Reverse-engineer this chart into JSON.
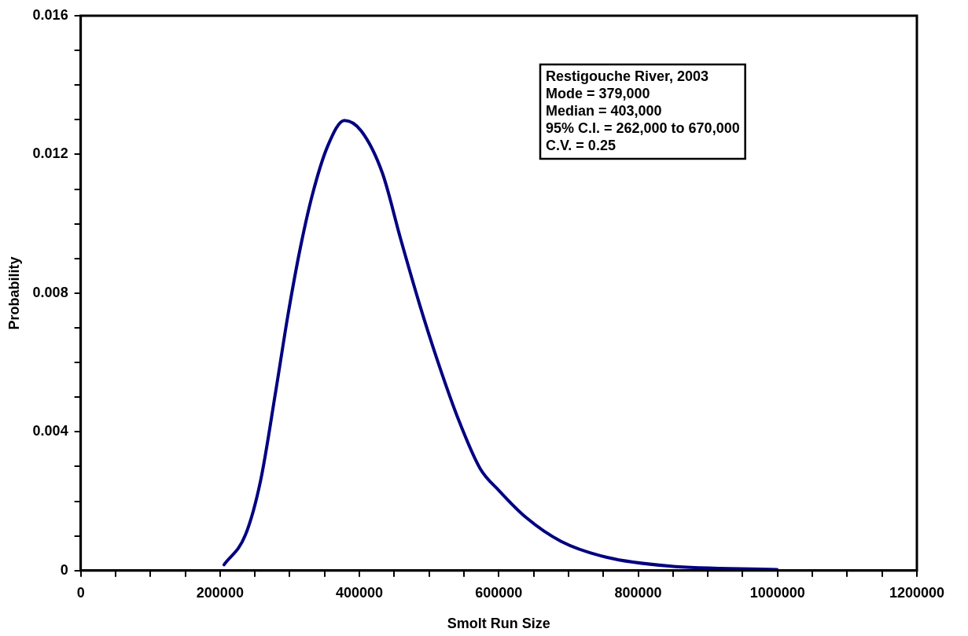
{
  "chart_data": {
    "type": "line",
    "xlabel": "Smolt Run Size",
    "ylabel": "Probability",
    "annotations": [
      "Restigouche River, 2003",
      "Mode = 379,000",
      "Median = 403,000",
      "95% C.I. = 262,000 to 670,000",
      "C.V. = 0.25"
    ],
    "series": [
      {
        "color": "#000080",
        "x": [
          205700,
          236400,
          258200,
          280100,
          297500,
          315000,
          332600,
          354400,
          378500,
          402500,
          433000,
          459300,
          485500,
          511800,
          542400,
          573000,
          600600,
          639200,
          689600,
          755400,
          844500,
          999300
        ],
        "values": [
          0.00017,
          0.00103,
          0.0026,
          0.0052,
          0.00738,
          0.00929,
          0.01085,
          0.01224,
          0.01298,
          0.01268,
          0.01146,
          0.00955,
          0.00773,
          0.00607,
          0.00434,
          0.00295,
          0.0023,
          0.00153,
          0.00084,
          0.00038,
          0.00013,
          3e-05
        ]
      }
    ],
    "xlim": [
      0,
      1200000
    ],
    "xticks": [
      0,
      {
        "value": 50000,
        "label": null
      },
      {
        "value": 100000,
        "label": null
      },
      {
        "value": 150000,
        "label": null
      },
      200000,
      {
        "value": 250000,
        "label": null
      },
      {
        "value": 300000,
        "label": null
      },
      {
        "value": 350000,
        "label": null
      },
      400000,
      {
        "value": 450000,
        "label": null
      },
      {
        "value": 500000,
        "label": null
      },
      {
        "value": 550000,
        "label": null
      },
      600000,
      {
        "value": 650000,
        "label": null
      },
      {
        "value": 700000,
        "label": null
      },
      {
        "value": 750000,
        "label": null
      },
      800000,
      {
        "value": 850000,
        "label": null
      },
      {
        "value": 900000,
        "label": null
      },
      {
        "value": 950000,
        "label": null
      },
      1000000,
      {
        "value": 1050000,
        "label": null
      },
      {
        "value": 1100000,
        "label": null
      },
      {
        "value": 1150000,
        "label": null
      },
      1200000
    ],
    "ylim": [
      0,
      0.016
    ],
    "yticks": [
      0,
      {
        "value": 0.001,
        "label": null
      },
      {
        "value": 0.002,
        "label": null
      },
      {
        "value": 0.003,
        "label": null
      },
      0.004,
      {
        "value": 0.005,
        "label": null
      },
      {
        "value": 0.006,
        "label": null
      },
      {
        "value": 0.007,
        "label": null
      },
      0.008,
      {
        "value": 0.009,
        "label": null
      },
      {
        "value": 0.01,
        "label": null
      },
      {
        "value": 0.011,
        "label": null
      },
      0.012,
      {
        "value": 0.013,
        "label": null
      },
      {
        "value": 0.014,
        "label": null
      },
      {
        "value": 0.015,
        "label": null
      },
      0.016
    ],
    "grid": false,
    "legend": false,
    "marker": "none",
    "line_style": "solid"
  }
}
